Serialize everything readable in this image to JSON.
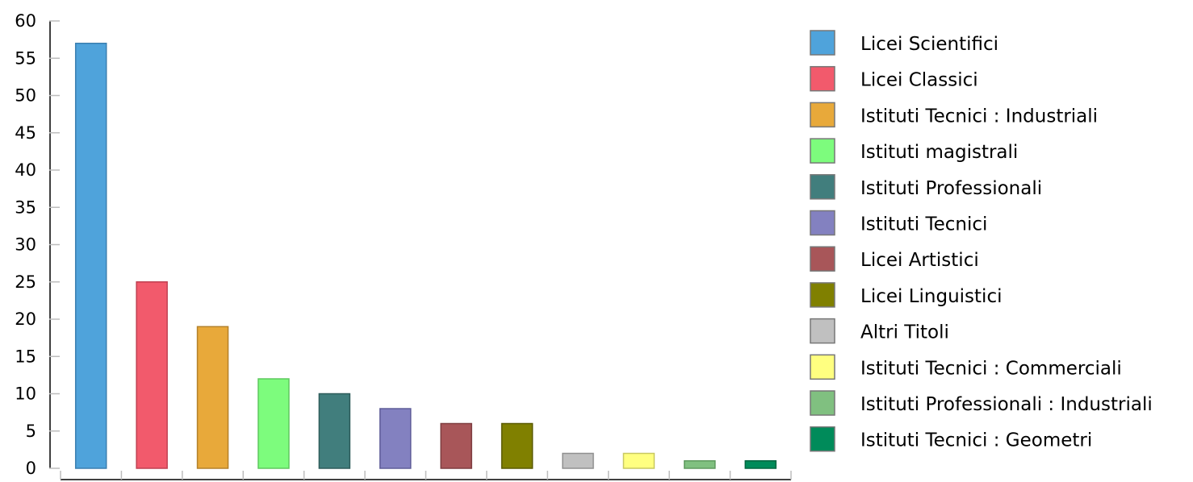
{
  "chart_data": {
    "type": "bar",
    "title": "",
    "xlabel": "",
    "ylabel": "",
    "ylim": [
      0,
      60
    ],
    "yticks": [
      "0",
      "5",
      "10",
      "15",
      "20",
      "25",
      "30",
      "35",
      "40",
      "45",
      "50",
      "55",
      "60"
    ],
    "categories": [
      "Licei Scientifici",
      "Licei Classici",
      "Istituti Tecnici : Industriali",
      "Istituti magistrali",
      "Istituti Professionali",
      "Istituti Tecnici",
      "Licei Artistici",
      "Licei Linguistici",
      "Altri Titoli",
      "Istituti Tecnici : Commerciali",
      "Istituti Professionali : Industriali",
      "Istituti Tecnici : Geometri"
    ],
    "values": [
      57,
      25,
      19,
      12,
      10,
      8,
      6,
      6,
      2,
      2,
      1,
      1
    ],
    "colors": [
      "#4fa3db",
      "#f25a6c",
      "#e8a93a",
      "#7dfc7d",
      "#417e7d",
      "#8381c0",
      "#a85659",
      "#808000",
      "#c0c0c0",
      "#ffff80",
      "#80c080",
      "#008b5a"
    ],
    "stroke_colors": [
      "#3a7fb0",
      "#c04052",
      "#b4812a",
      "#5fc85f",
      "#2e5c5b",
      "#5f5d98",
      "#7e3d40",
      "#5a5a00",
      "#909090",
      "#c8c860",
      "#5f9a5f",
      "#006640"
    ],
    "legend_position": "right",
    "grid": false
  }
}
